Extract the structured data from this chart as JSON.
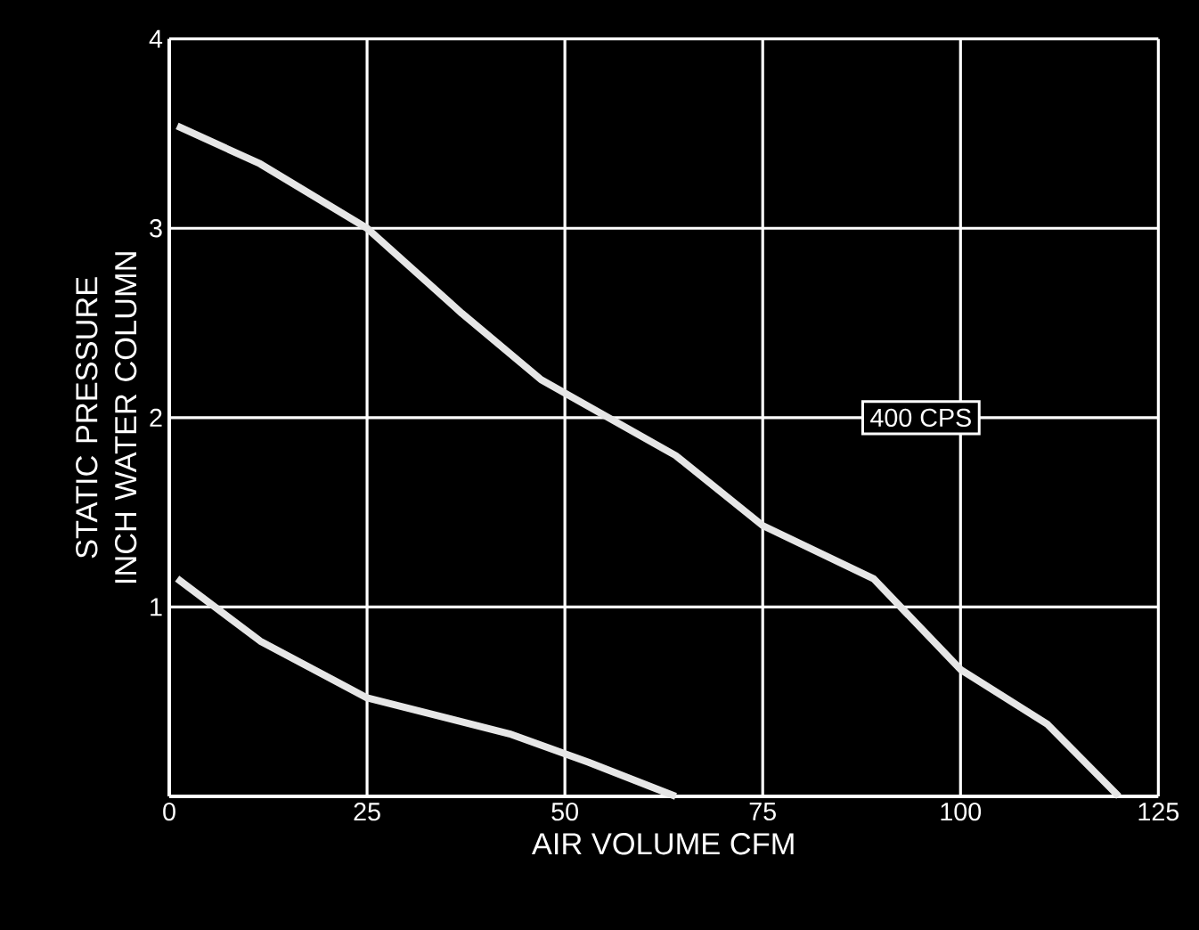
{
  "chart_data": {
    "type": "line",
    "xlabel": "AIR VOLUME CFM",
    "ylabel": "STATIC PRESSURE INCH WATER COLUMN",
    "series": [
      {
        "color": "#e6e6e6",
        "x": [
          1,
          11.5,
          25,
          37,
          47,
          64,
          75,
          89,
          100,
          111,
          120
        ],
        "values": [
          3.54,
          3.34,
          3.0,
          2.55,
          2.2,
          1.8,
          1.43,
          1.15,
          0.67,
          0.38,
          0
        ]
      },
      {
        "color": "#e6e6e6",
        "x": [
          1,
          11.5,
          25,
          43,
          53,
          64
        ],
        "values": [
          1.15,
          0.82,
          0.52,
          0.33,
          0.18,
          0
        ]
      }
    ],
    "annotations": [
      "400 CPS"
    ],
    "xlim": [
      0,
      125
    ],
    "xticks": [
      0,
      25,
      50,
      75,
      100,
      125
    ],
    "ylim": [
      0,
      4
    ],
    "yticks": [
      1,
      2,
      3,
      4
    ],
    "grid": true,
    "line_style": "solid",
    "marker": "none"
  }
}
